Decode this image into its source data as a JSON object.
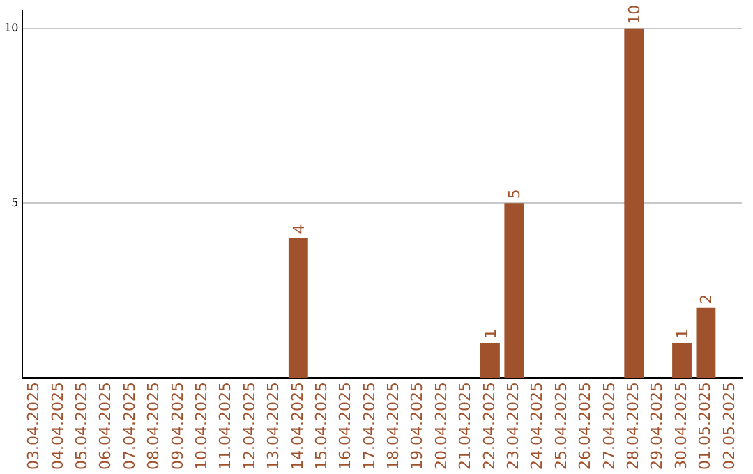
{
  "chart_data": {
    "type": "bar",
    "categories": [
      "03.04.2025",
      "04.04.2025",
      "05.04.2025",
      "06.04.2025",
      "07.04.2025",
      "08.04.2025",
      "09.04.2025",
      "10.04.2025",
      "11.04.2025",
      "12.04.2025",
      "13.04.2025",
      "14.04.2025",
      "15.04.2025",
      "16.04.2025",
      "17.04.2025",
      "18.04.2025",
      "19.04.2025",
      "20.04.2025",
      "21.04.2025",
      "22.04.2025",
      "23.04.2025",
      "24.04.2025",
      "25.04.2025",
      "26.04.2025",
      "27.04.2025",
      "28.04.2025",
      "29.04.2025",
      "30.04.2025",
      "01.05.2025",
      "02.05.2025"
    ],
    "values": [
      0,
      0,
      0,
      0,
      0,
      0,
      0,
      0,
      0,
      0,
      0,
      4,
      0,
      0,
      0,
      0,
      0,
      0,
      0,
      1,
      5,
      0,
      0,
      0,
      0,
      10,
      0,
      1,
      2,
      0
    ],
    "value_labels": [
      null,
      null,
      null,
      null,
      null,
      null,
      null,
      null,
      null,
      null,
      null,
      "4",
      null,
      null,
      null,
      null,
      null,
      null,
      null,
      "1",
      "5",
      null,
      null,
      null,
      null,
      "10",
      null,
      "1",
      "2",
      null
    ],
    "color": "#a0522d",
    "ylim": [
      0,
      10.5
    ],
    "yticks": [
      5,
      10
    ],
    "grid": "y",
    "legend": false
  }
}
